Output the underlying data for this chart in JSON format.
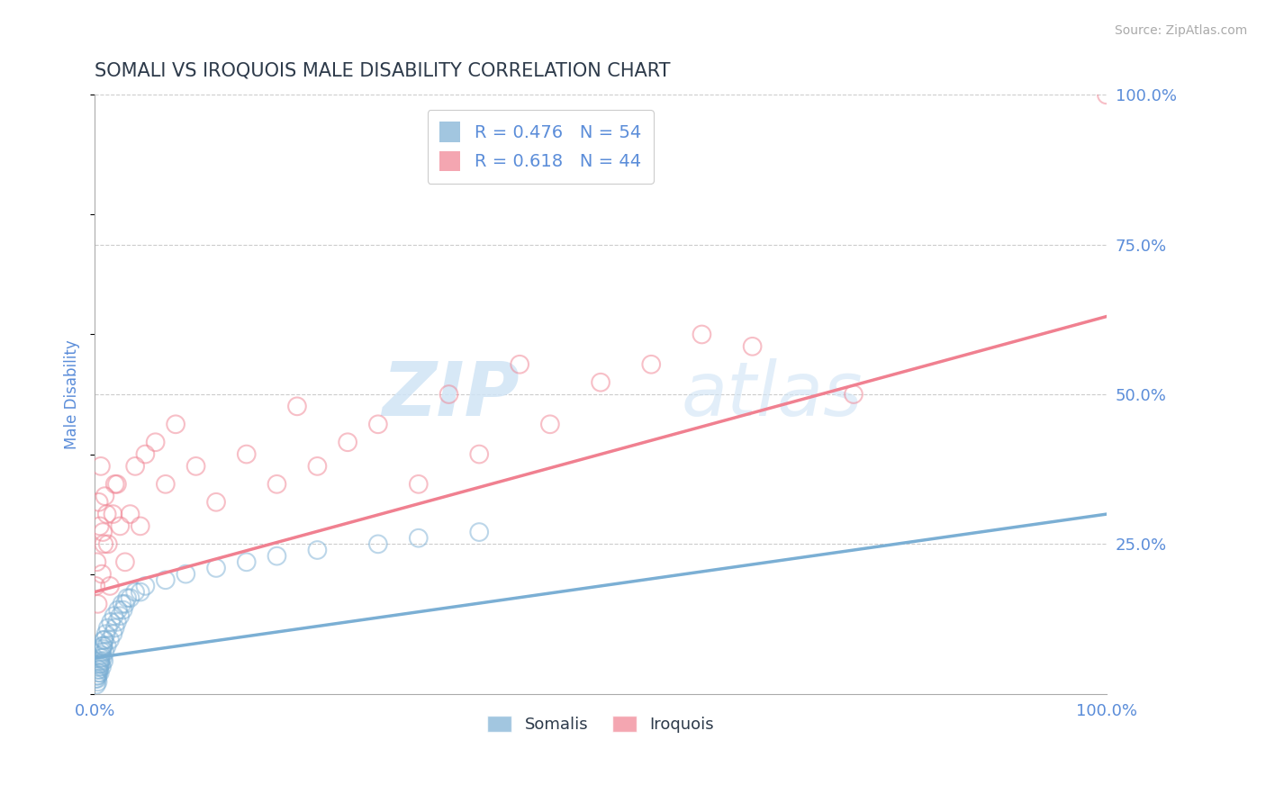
{
  "title": "SOMALI VS IROQUOIS MALE DISABILITY CORRELATION CHART",
  "source_text": "Source: ZipAtlas.com",
  "ylabel": "Male Disability",
  "legend_r_blue": "R = 0.476",
  "legend_n_blue": "N = 54",
  "legend_r_pink": "R = 0.618",
  "legend_n_pink": "N = 44",
  "legend_label_blue": "Somalis",
  "legend_label_pink": "Iroquois",
  "title_color": "#2d3a4a",
  "axis_label_color": "#5b8dd9",
  "tick_label_color": "#5b8dd9",
  "blue_color": "#7bafd4",
  "pink_color": "#f08090",
  "blue_scatter_x": [
    0.1,
    0.2,
    0.3,
    0.4,
    0.5,
    0.6,
    0.7,
    0.8,
    0.9,
    1.0,
    0.15,
    0.25,
    0.35,
    0.45,
    0.55,
    0.65,
    0.75,
    0.85,
    0.95,
    1.2,
    1.5,
    1.8,
    2.0,
    2.2,
    2.5,
    2.8,
    3.0,
    3.5,
    4.0,
    0.3,
    0.4,
    0.5,
    0.6,
    0.7,
    0.8,
    0.9,
    1.1,
    1.3,
    1.6,
    1.9,
    2.3,
    2.7,
    3.2,
    4.5,
    5.0,
    7.0,
    9.0,
    12.0,
    15.0,
    18.0,
    22.0,
    28.0,
    32.0,
    38.0
  ],
  "blue_scatter_y": [
    2.5,
    3.0,
    2.0,
    4.0,
    3.5,
    5.0,
    4.5,
    6.0,
    5.5,
    7.0,
    1.5,
    2.5,
    3.5,
    4.5,
    5.5,
    6.5,
    7.5,
    8.0,
    9.0,
    8.0,
    9.0,
    10.0,
    11.0,
    12.0,
    13.0,
    14.0,
    15.0,
    16.0,
    17.0,
    3.0,
    4.0,
    5.0,
    6.0,
    7.0,
    8.0,
    9.0,
    10.0,
    11.0,
    12.0,
    13.0,
    14.0,
    15.0,
    16.0,
    17.0,
    18.0,
    19.0,
    20.0,
    21.0,
    22.0,
    23.0,
    24.0,
    25.0,
    26.0,
    27.0
  ],
  "pink_scatter_x": [
    0.1,
    0.2,
    0.3,
    0.5,
    0.7,
    0.9,
    1.2,
    1.5,
    2.0,
    2.5,
    0.4,
    0.6,
    0.8,
    1.0,
    1.3,
    1.8,
    2.2,
    3.0,
    4.0,
    5.0,
    3.5,
    4.5,
    6.0,
    7.0,
    8.0,
    10.0,
    12.0,
    15.0,
    18.0,
    20.0,
    22.0,
    25.0,
    28.0,
    32.0,
    35.0,
    38.0,
    42.0,
    45.0,
    50.0,
    55.0,
    60.0,
    65.0,
    75.0,
    100.0
  ],
  "pink_scatter_y": [
    18.0,
    22.0,
    15.0,
    28.0,
    20.0,
    25.0,
    30.0,
    18.0,
    35.0,
    28.0,
    32.0,
    38.0,
    27.0,
    33.0,
    25.0,
    30.0,
    35.0,
    22.0,
    38.0,
    40.0,
    30.0,
    28.0,
    42.0,
    35.0,
    45.0,
    38.0,
    32.0,
    40.0,
    35.0,
    48.0,
    38.0,
    42.0,
    45.0,
    35.0,
    50.0,
    40.0,
    55.0,
    45.0,
    52.0,
    55.0,
    60.0,
    58.0,
    50.0,
    100.0
  ],
  "blue_trend_x": [
    0,
    100
  ],
  "blue_trend_y": [
    6.0,
    30.0
  ],
  "pink_trend_x": [
    0,
    100
  ],
  "pink_trend_y": [
    17.0,
    63.0
  ],
  "xlim": [
    0,
    100
  ],
  "ylim": [
    0,
    100
  ],
  "xticks": [
    0,
    100
  ],
  "xtick_labels": [
    "0.0%",
    "100.0%"
  ],
  "yticks_right": [
    0,
    25,
    50,
    75,
    100
  ],
  "ytick_labels_right": [
    "",
    "25.0%",
    "50.0%",
    "75.0%",
    "100.0%"
  ],
  "background_color": "#ffffff",
  "grid_color": "#cccccc",
  "scatter_size": 200,
  "scatter_alpha": 0.5,
  "marker_linewidth": 1.5
}
